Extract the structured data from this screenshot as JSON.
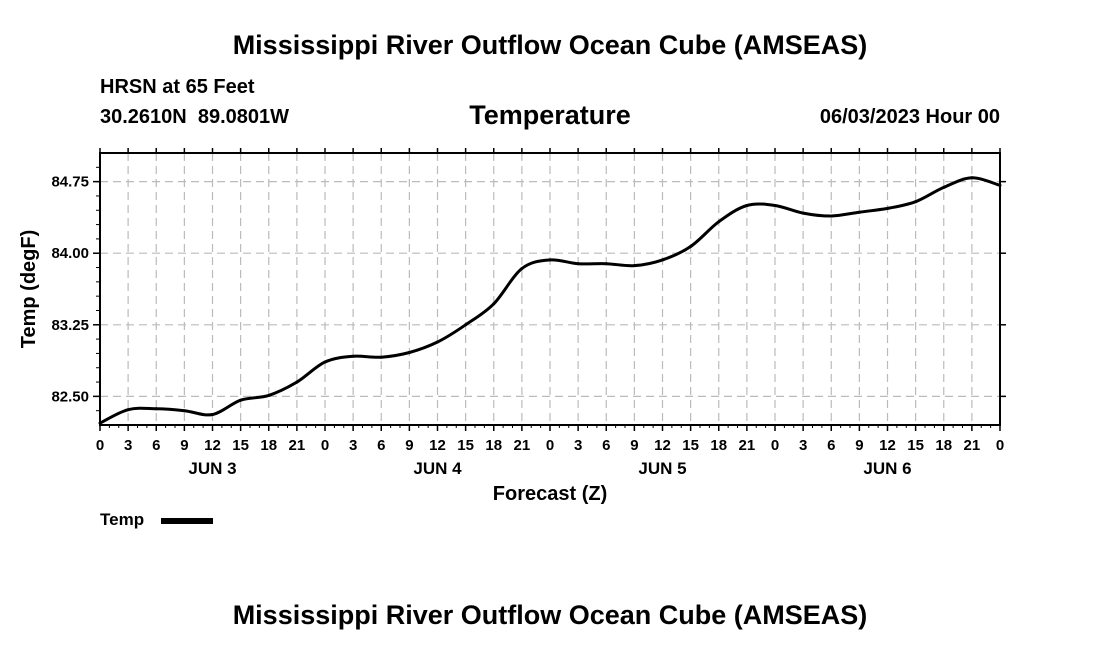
{
  "header": {
    "title": "Mississippi River Outflow Ocean Cube (AMSEAS)",
    "station": "HRSN at 65 Feet",
    "coords": "30.2610N  89.0801W",
    "variable": "Temperature",
    "datetime": "06/03/2023 Hour 00"
  },
  "footer": {
    "title": "Mississippi River Outflow Ocean Cube (AMSEAS)"
  },
  "legend": {
    "label": "Temp",
    "color": "#000000"
  },
  "chart_data": {
    "type": "line",
    "title": "Temperature",
    "xlabel": "Forecast (Z)",
    "ylabel": "Temp (degF)",
    "ylim": [
      82.2,
      85.05
    ],
    "xlim": [
      0,
      96
    ],
    "grid": true,
    "y_ticks": [
      82.5,
      83.25,
      84.0,
      84.75
    ],
    "y_tick_labels": [
      "82.50",
      "83.25",
      "84.00",
      "84.75"
    ],
    "x_ticks": [
      0,
      3,
      6,
      9,
      12,
      15,
      18,
      21,
      24,
      27,
      30,
      33,
      36,
      39,
      42,
      45,
      48,
      51,
      54,
      57,
      60,
      63,
      66,
      69,
      72,
      75,
      78,
      81,
      84,
      87,
      90,
      93,
      96
    ],
    "x_tick_labels": [
      "0",
      "3",
      "6",
      "9",
      "12",
      "15",
      "18",
      "21",
      "0",
      "3",
      "6",
      "9",
      "12",
      "15",
      "18",
      "21",
      "0",
      "3",
      "6",
      "9",
      "12",
      "15",
      "18",
      "21",
      "0",
      "3",
      "6",
      "9",
      "12",
      "15",
      "18",
      "21",
      "0"
    ],
    "day_labels": [
      {
        "hour": 12,
        "label": "JUN 3"
      },
      {
        "hour": 36,
        "label": "JUN 4"
      },
      {
        "hour": 60,
        "label": "JUN 5"
      },
      {
        "hour": 84,
        "label": "JUN 6"
      }
    ],
    "series": [
      {
        "name": "Temp",
        "x": [
          0,
          3,
          6,
          9,
          12,
          15,
          18,
          21,
          24,
          27,
          30,
          33,
          36,
          39,
          42,
          45,
          48,
          51,
          54,
          57,
          60,
          63,
          66,
          69,
          72,
          75,
          78,
          81,
          84,
          87,
          90,
          93,
          96
        ],
        "values": [
          82.22,
          82.36,
          82.37,
          82.35,
          82.31,
          82.46,
          82.51,
          82.65,
          82.86,
          82.92,
          82.91,
          82.96,
          83.07,
          83.25,
          83.47,
          83.84,
          83.93,
          83.89,
          83.89,
          83.87,
          83.93,
          84.07,
          84.33,
          84.5,
          84.5,
          84.42,
          84.39,
          84.43,
          84.47,
          84.54,
          84.69,
          84.79,
          84.71
        ]
      }
    ]
  }
}
